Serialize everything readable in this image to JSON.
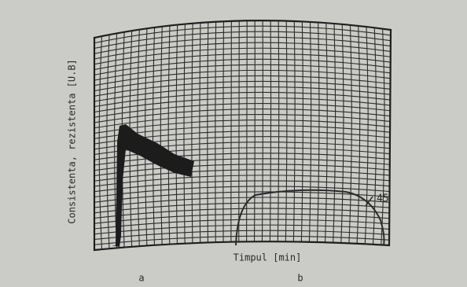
{
  "figure": {
    "y_label": "Consistenta, rezistenta [U.B]",
    "x_label": "Timpul [min]",
    "curve_label": "45",
    "panel_labels": [
      "a",
      "b"
    ]
  }
}
